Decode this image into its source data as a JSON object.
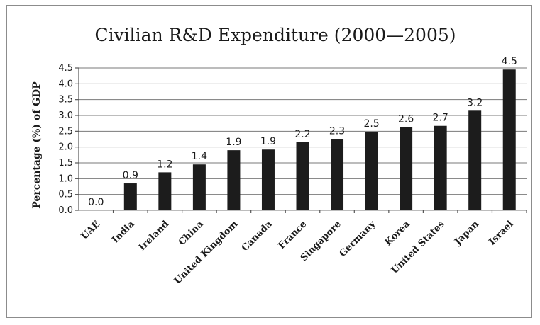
{
  "chart_data": {
    "type": "bar",
    "title": "Civilian R&D Expenditure (2000—2005)",
    "xlabel": "",
    "ylabel": "Percentage (%) of GDP",
    "ylim": [
      0,
      4.5
    ],
    "yticks": [
      "0.0",
      "0.5",
      "1.0",
      "1.5",
      "2.0",
      "2.5",
      "3.0",
      "3.5",
      "4.0",
      "4.5"
    ],
    "grid": true,
    "legend": "none",
    "bar_color": "#1c1c1c",
    "categories": [
      "UAE",
      "India",
      "Ireland",
      "China",
      "United Kingdom",
      "Canada",
      "France",
      "Singapore",
      "Germany",
      "Korea",
      "United States",
      "Japan",
      "Israel"
    ],
    "values": [
      0.0,
      0.85,
      1.2,
      1.45,
      1.9,
      1.92,
      2.15,
      2.25,
      2.48,
      2.63,
      2.67,
      3.15,
      4.45
    ],
    "data_labels": [
      "0.0",
      "0.9",
      "1.2",
      "1.4",
      "1.9",
      "1.9",
      "2.2",
      "2.3",
      "2.5",
      "2.6",
      "2.7",
      "3.2",
      "4.5"
    ]
  }
}
